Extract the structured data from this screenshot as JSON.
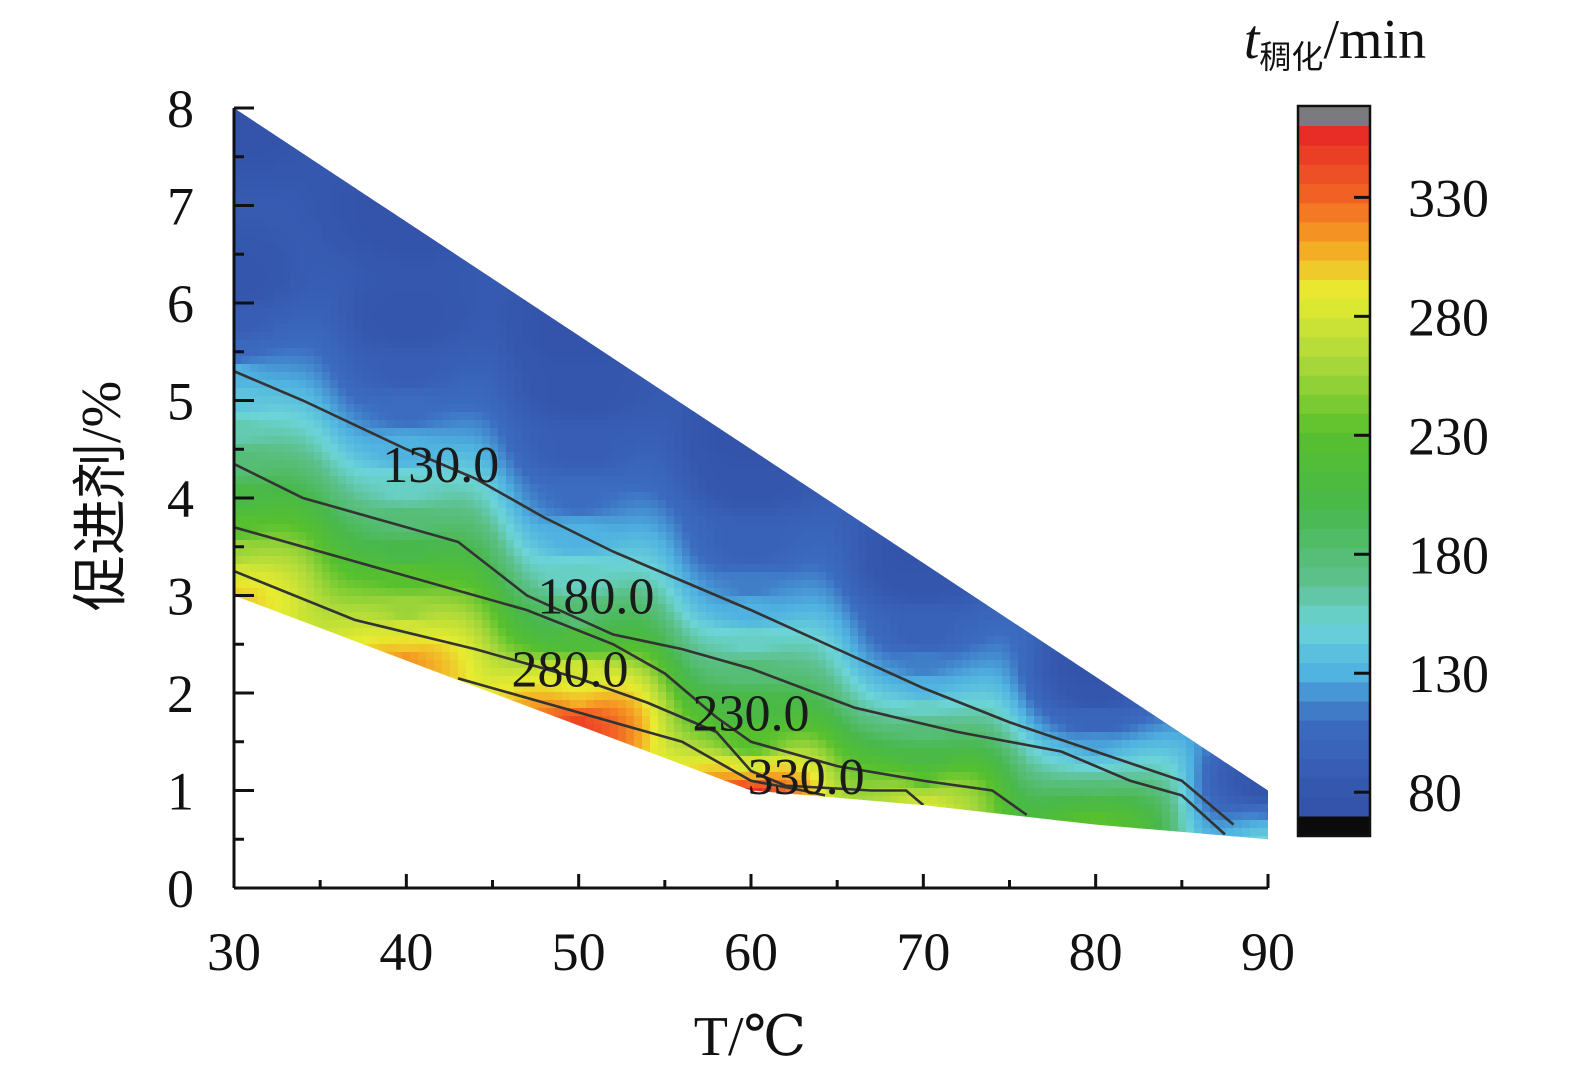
{
  "chart_data": {
    "type": "heatmap",
    "subtype": "filled-contour",
    "xlabel": "T/℃",
    "ylabel": "促进剂/%",
    "xlim": [
      30,
      90
    ],
    "ylim": [
      0,
      8
    ],
    "x_ticks": [
      30,
      40,
      50,
      60,
      70,
      80,
      90
    ],
    "y_ticks": [
      0,
      1,
      2,
      3,
      4,
      5,
      6,
      7,
      8
    ],
    "colorbar": {
      "title_main": "t",
      "title_sub": "稠化",
      "title_unit": "/min",
      "range": [
        70,
        360
      ],
      "ticks": [
        80,
        130,
        180,
        230,
        280,
        330
      ],
      "tick_labels": [
        "80",
        "130",
        "180",
        "230",
        "280",
        "330"
      ],
      "over_color": "#7a7a7f",
      "under_color": "#0b0b0b"
    },
    "colormap": [
      {
        "v": 70,
        "color": "#3350a8"
      },
      {
        "v": 110,
        "color": "#3b6cc0"
      },
      {
        "v": 130,
        "color": "#4fb2e0"
      },
      {
        "v": 150,
        "color": "#6cd4d8"
      },
      {
        "v": 170,
        "color": "#5cc08a"
      },
      {
        "v": 200,
        "color": "#48b84a"
      },
      {
        "v": 230,
        "color": "#56c02e"
      },
      {
        "v": 260,
        "color": "#a8d83a"
      },
      {
        "v": 290,
        "color": "#e8ec30"
      },
      {
        "v": 310,
        "color": "#f5a623"
      },
      {
        "v": 330,
        "color": "#f26524"
      },
      {
        "v": 360,
        "color": "#e52426"
      }
    ],
    "domain_boundary": [
      [
        30,
        8
      ],
      [
        90,
        1.0
      ],
      [
        90,
        0.5
      ],
      [
        80,
        0.65
      ],
      [
        70,
        0.85
      ],
      [
        60,
        1.0
      ],
      [
        30,
        3.0
      ]
    ],
    "contours": [
      {
        "level": 130,
        "label": "130.0",
        "label_at": [
          42,
          4.35
        ],
        "points": [
          [
            30,
            5.3
          ],
          [
            34,
            5.0
          ],
          [
            40,
            4.5
          ],
          [
            44,
            4.2
          ],
          [
            48,
            3.8
          ],
          [
            52,
            3.45
          ],
          [
            56,
            3.15
          ],
          [
            60,
            2.85
          ],
          [
            65,
            2.45
          ],
          [
            70,
            2.05
          ],
          [
            75,
            1.7
          ],
          [
            80,
            1.4
          ],
          [
            85,
            1.1
          ],
          [
            88,
            0.65
          ]
        ]
      },
      {
        "level": 180,
        "label": "180.0",
        "label_at": [
          51,
          3.0
        ],
        "points": [
          [
            30,
            4.35
          ],
          [
            34,
            4.0
          ],
          [
            43,
            3.55
          ],
          [
            47,
            3.0
          ],
          [
            52,
            2.6
          ],
          [
            56,
            2.45
          ],
          [
            60,
            2.25
          ],
          [
            66,
            1.85
          ],
          [
            72,
            1.6
          ],
          [
            78,
            1.4
          ],
          [
            82,
            1.1
          ],
          [
            85,
            0.95
          ],
          [
            87.5,
            0.55
          ]
        ]
      },
      {
        "level": 230,
        "label": "230.0",
        "label_at": [
          60,
          1.8
        ],
        "points": [
          [
            30,
            3.7
          ],
          [
            37,
            3.35
          ],
          [
            47,
            2.85
          ],
          [
            52,
            2.5
          ],
          [
            55,
            2.2
          ],
          [
            58,
            1.75
          ],
          [
            60,
            1.5
          ],
          [
            65,
            1.25
          ],
          [
            70,
            1.1
          ],
          [
            74,
            1.0
          ],
          [
            76,
            0.75
          ]
        ]
      },
      {
        "level": 280,
        "label": "280.0",
        "label_at": [
          49.5,
          2.25
        ],
        "points": [
          [
            30,
            3.25
          ],
          [
            37,
            2.75
          ],
          [
            44,
            2.45
          ],
          [
            50,
            2.15
          ],
          [
            54,
            1.9
          ],
          [
            58,
            1.6
          ],
          [
            60,
            1.2
          ],
          [
            62,
            1.05
          ],
          [
            67,
            1.0
          ],
          [
            69,
            1.0
          ],
          [
            70,
            0.85
          ]
        ]
      },
      {
        "level": 330,
        "label": "330.0",
        "label_at": [
          63.2,
          1.15
        ],
        "points": [
          [
            43,
            2.15
          ],
          [
            50,
            1.8
          ],
          [
            56,
            1.5
          ],
          [
            58,
            1.3
          ],
          [
            60,
            1.1
          ],
          [
            63,
            1.0
          ],
          [
            64.3,
            0.95
          ]
        ]
      }
    ],
    "field_samples": [
      [
        30,
        8,
        75
      ],
      [
        40,
        6.9,
        75
      ],
      [
        50,
        5.7,
        75
      ],
      [
        60,
        4.6,
        75
      ],
      [
        70,
        3.4,
        75
      ],
      [
        80,
        2.25,
        75
      ],
      [
        90,
        1.0,
        75
      ],
      [
        30,
        6.2,
        78
      ],
      [
        30,
        5.8,
        90
      ],
      [
        30,
        5.5,
        105
      ],
      [
        30,
        5.3,
        130
      ],
      [
        30,
        5.0,
        140
      ],
      [
        30,
        4.7,
        160
      ],
      [
        30,
        4.35,
        180
      ],
      [
        30,
        4.0,
        205
      ],
      [
        30,
        3.7,
        230
      ],
      [
        30,
        3.45,
        255
      ],
      [
        30,
        3.25,
        280
      ],
      [
        30,
        3.1,
        292
      ],
      [
        30,
        3.0,
        300
      ],
      [
        40,
        5.8,
        78
      ],
      [
        40,
        5.3,
        90
      ],
      [
        40,
        4.9,
        110
      ],
      [
        40,
        4.5,
        130
      ],
      [
        40,
        4.1,
        155
      ],
      [
        40,
        3.75,
        180
      ],
      [
        40,
        3.45,
        200
      ],
      [
        40,
        3.2,
        230
      ],
      [
        40,
        2.85,
        255
      ],
      [
        40,
        2.65,
        280
      ],
      [
        40,
        2.45,
        300
      ],
      [
        40,
        2.35,
        315
      ],
      [
        50,
        5.1,
        78
      ],
      [
        50,
        4.5,
        90
      ],
      [
        50,
        4.0,
        110
      ],
      [
        50,
        3.6,
        130
      ],
      [
        50,
        3.2,
        155
      ],
      [
        50,
        2.75,
        180
      ],
      [
        50,
        2.6,
        215
      ],
      [
        50,
        2.15,
        280
      ],
      [
        50,
        1.95,
        300
      ],
      [
        50,
        1.8,
        330
      ],
      [
        50,
        1.7,
        345
      ],
      [
        60,
        4.2,
        78
      ],
      [
        60,
        3.5,
        95
      ],
      [
        60,
        3.1,
        115
      ],
      [
        60,
        2.85,
        130
      ],
      [
        60,
        2.5,
        155
      ],
      [
        60,
        2.25,
        180
      ],
      [
        60,
        1.85,
        205
      ],
      [
        60,
        1.5,
        230
      ],
      [
        60,
        1.2,
        280
      ],
      [
        60,
        1.1,
        330
      ],
      [
        60,
        1.0,
        355
      ],
      [
        70,
        3.2,
        78
      ],
      [
        70,
        2.6,
        95
      ],
      [
        70,
        2.3,
        115
      ],
      [
        70,
        2.05,
        130
      ],
      [
        70,
        1.85,
        155
      ],
      [
        70,
        1.6,
        180
      ],
      [
        70,
        1.35,
        205
      ],
      [
        70,
        1.1,
        230
      ],
      [
        70,
        1.0,
        260
      ],
      [
        70,
        0.9,
        275
      ],
      [
        70,
        0.85,
        285
      ],
      [
        80,
        2.0,
        78
      ],
      [
        80,
        1.7,
        100
      ],
      [
        80,
        1.45,
        125
      ],
      [
        80,
        1.3,
        140
      ],
      [
        80,
        1.15,
        165
      ],
      [
        80,
        1.0,
        185
      ],
      [
        80,
        0.85,
        210
      ],
      [
        80,
        0.7,
        230
      ],
      [
        80,
        0.65,
        232
      ],
      [
        90,
        1.0,
        78
      ],
      [
        90,
        0.8,
        110
      ],
      [
        90,
        0.65,
        130
      ],
      [
        90,
        0.5,
        150
      ]
    ]
  }
}
